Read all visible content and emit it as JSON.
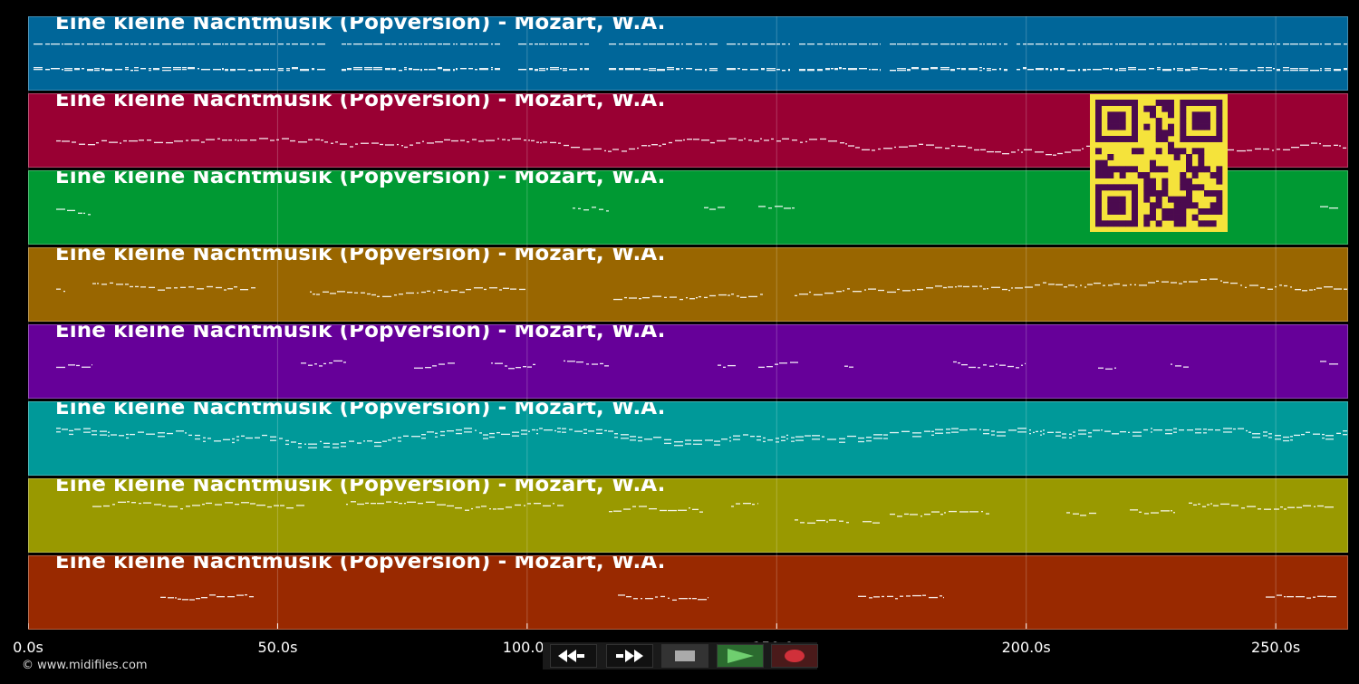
{
  "track_title": "Eine kleine Nachtmusik (Popversion) - Mozart, W.A.",
  "tracks": [
    {
      "title": "Eine kleine Nachtmusik (Popversion) - Mozart, W.A.",
      "color": "#006699"
    },
    {
      "title": "Eine kleine Nachtmusik (Popversion) - Mozart, W.A.",
      "color": "#990033"
    },
    {
      "title": "Eine kleine Nachtmusik (Popversion) - Mozart, W.A.",
      "color": "#009933"
    },
    {
      "title": "Eine kleine Nachtmusik (Popversion) - Mozart, W.A.",
      "color": "#996600"
    },
    {
      "title": "Eine kleine Nachtmusik (Popversion) - Mozart, W.A.",
      "color": "#660099"
    },
    {
      "title": "Eine kleine Nachtmusik (Popversion) - Mozart, W.A.",
      "color": "#009999"
    },
    {
      "title": "Eine kleine Nachtmusik (Popversion) - Mozart, W.A.",
      "color": "#999900"
    },
    {
      "title": "Eine kleine Nachtmusik (Popversion) - Mozart, W.A.",
      "color": "#992900"
    }
  ],
  "timeline": {
    "start_seconds": 0,
    "end_seconds": 264.5,
    "ticks": [
      {
        "value": 0,
        "label": "0.0s"
      },
      {
        "value": 50,
        "label": "50.0s"
      },
      {
        "value": 100,
        "label": "100.0s"
      },
      {
        "value": 150,
        "label": "150.0s"
      },
      {
        "value": 200,
        "label": "200.0s"
      },
      {
        "value": 250,
        "label": "250.0s"
      }
    ]
  },
  "credit": "© www.midifiles.com",
  "controls": {
    "rewind": "rewind-icon",
    "fast_forward": "fast-forward-icon",
    "stop": "stop-icon",
    "play": "play-icon",
    "record": "record-icon",
    "colors": {
      "play": "#5fcf6f",
      "record": "#d0303a",
      "stop": "#aaaaaa"
    }
  },
  "qr_code": {
    "icon": "qr-code-icon",
    "foreground": "#4b0a4f",
    "background": "#f5e33b"
  }
}
